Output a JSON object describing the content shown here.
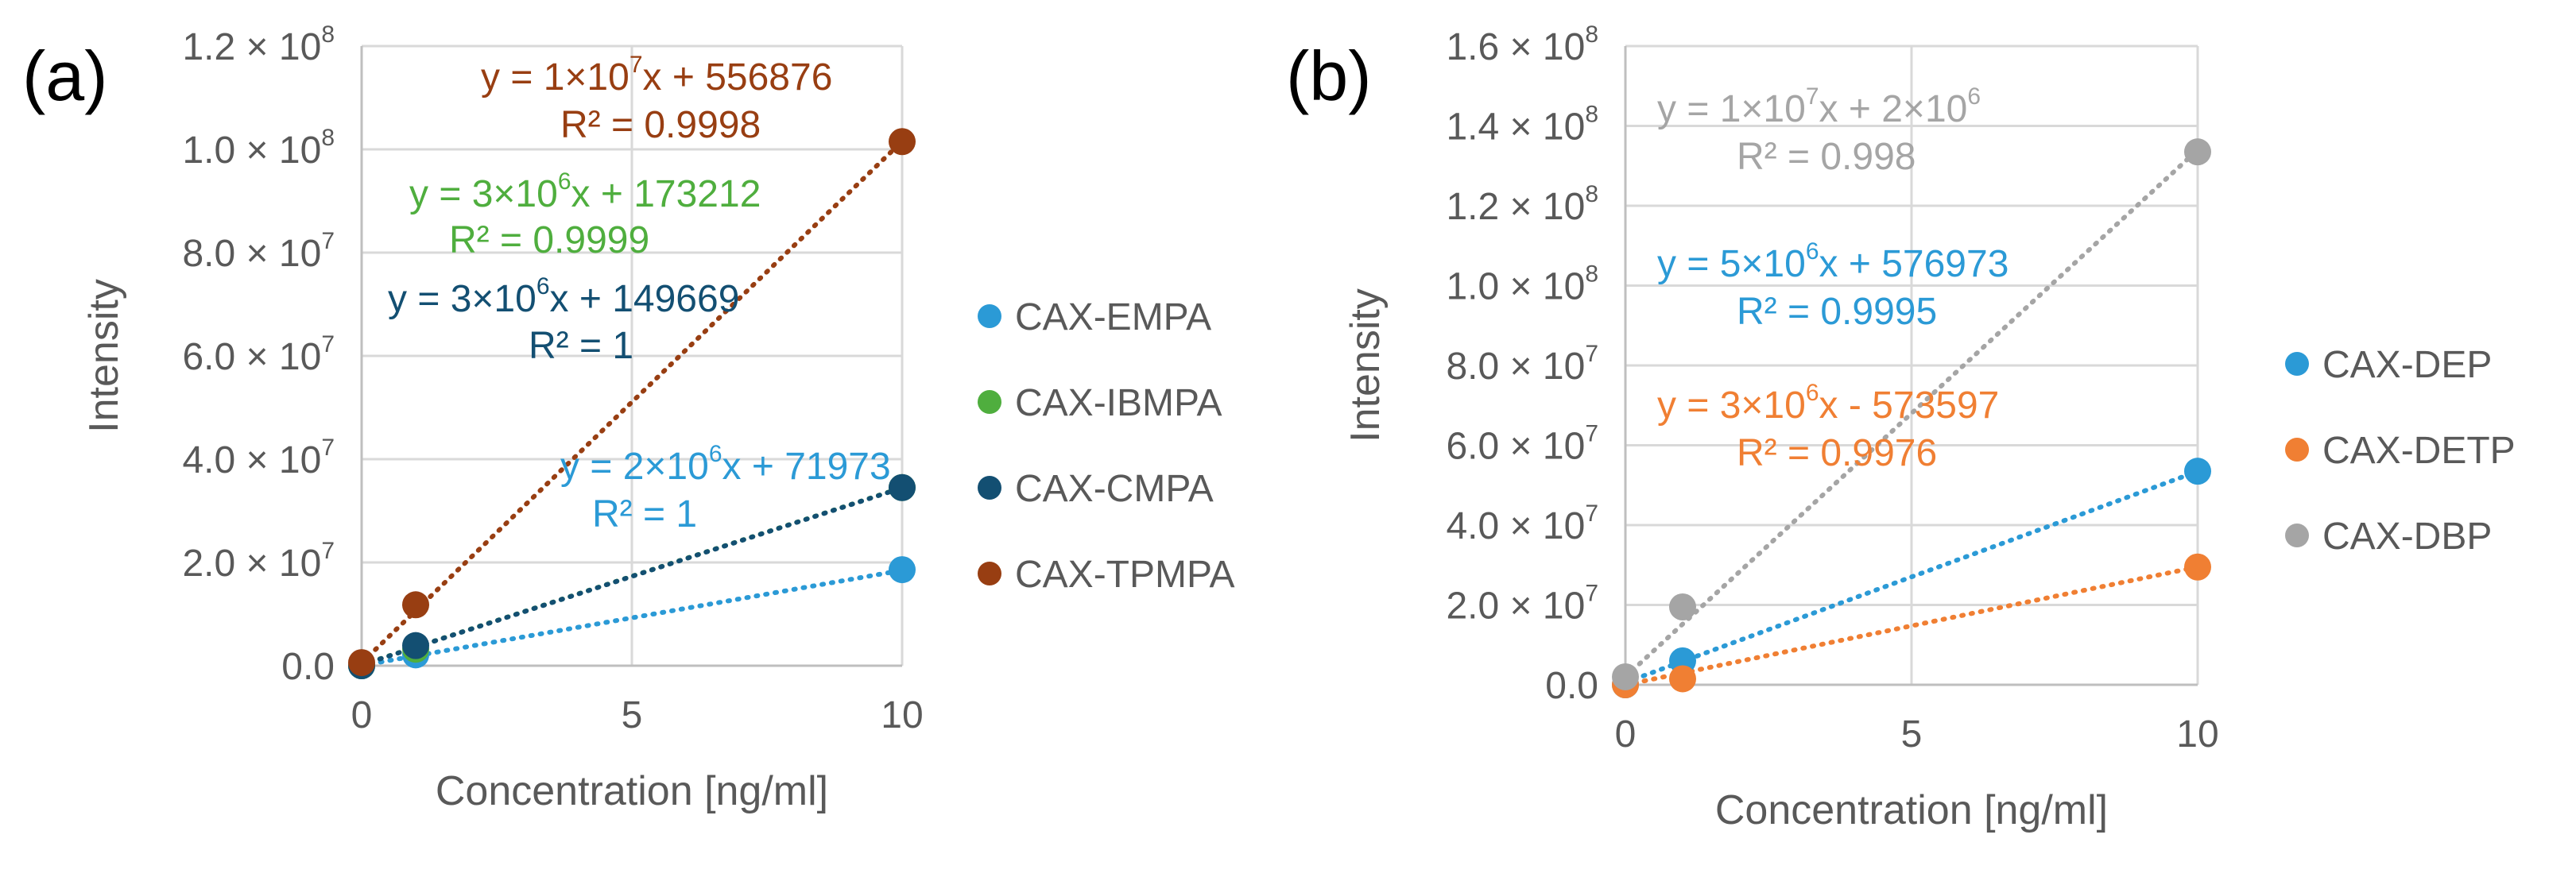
{
  "chart_data": [
    {
      "panel_label": "(a)",
      "type": "scatter",
      "xlabel": "Concentration [ng/ml]",
      "ylabel": "Intensity",
      "xlim": [
        0,
        10
      ],
      "ylim": [
        0,
        120000000
      ],
      "x_ticks": [
        {
          "value": 0,
          "label": "0"
        },
        {
          "value": 5,
          "label": "5"
        },
        {
          "value": 10,
          "label": "10"
        }
      ],
      "y_ticks": [
        {
          "value": 0,
          "label": "0.0",
          "exp": ""
        },
        {
          "value": 20000000,
          "label": "2.0 × 10",
          "exp": "7"
        },
        {
          "value": 40000000,
          "label": "4.0 × 10",
          "exp": "7"
        },
        {
          "value": 60000000,
          "label": "6.0 × 10",
          "exp": "7"
        },
        {
          "value": 80000000,
          "label": "8.0 × 10",
          "exp": "7"
        },
        {
          "value": 100000000,
          "label": "1.0 × 10",
          "exp": "8"
        },
        {
          "value": 120000000,
          "label": "1.2 × 10",
          "exp": "8"
        }
      ],
      "grid": true,
      "legend_position": "right",
      "series": [
        {
          "name": "CAX-EMPA",
          "color": "#2b9ad6",
          "points": [
            {
              "x": 0,
              "y": 0
            },
            {
              "x": 1,
              "y": 2100000
            },
            {
              "x": 10,
              "y": 18600000
            }
          ],
          "fit": {
            "slope": 1840000,
            "intercept": 71973
          },
          "equation": [
            "y = 2×10",
            "6",
            "x + 71973"
          ],
          "r2": "R² = 1"
        },
        {
          "name": "CAX-IBMPA",
          "color": "#4fae3e",
          "points": [
            {
              "x": 0,
              "y": 0
            },
            {
              "x": 1,
              "y": 3200000
            },
            {
              "x": 10,
              "y": 34500000
            }
          ],
          "fit": {
            "slope": 3430000,
            "intercept": 173212
          },
          "equation": [
            "y = 3×10",
            "6",
            "x + 173212"
          ],
          "r2": "R² = 0.9999"
        },
        {
          "name": "CAX-CMPA",
          "color": "#134f72",
          "points": [
            {
              "x": 0,
              "y": 0
            },
            {
              "x": 1,
              "y": 3900000
            },
            {
              "x": 10,
              "y": 34500000
            }
          ],
          "fit": {
            "slope": 3430000,
            "intercept": 149669
          },
          "equation": [
            "y = 3×10",
            "6",
            "x + 149669"
          ],
          "r2": "R² = 1"
        },
        {
          "name": "CAX-TPMPA",
          "color": "#983e12",
          "points": [
            {
              "x": 0,
              "y": 600000
            },
            {
              "x": 1,
              "y": 11800000
            },
            {
              "x": 10,
              "y": 101500000
            }
          ],
          "fit": {
            "slope": 10100000,
            "intercept": 556876
          },
          "equation": [
            "y = 1×10",
            "7",
            "x + 556876"
          ],
          "r2": "R² = 0.9998"
        }
      ]
    },
    {
      "panel_label": "(b)",
      "type": "scatter",
      "xlabel": "Concentration [ng/ml]",
      "ylabel": "Intensity",
      "xlim": [
        0,
        10
      ],
      "ylim": [
        0,
        160000000
      ],
      "x_ticks": [
        {
          "value": 0,
          "label": "0"
        },
        {
          "value": 5,
          "label": "5"
        },
        {
          "value": 10,
          "label": "10"
        }
      ],
      "y_ticks": [
        {
          "value": 0,
          "label": "0.0",
          "exp": ""
        },
        {
          "value": 20000000,
          "label": "2.0 × 10",
          "exp": "7"
        },
        {
          "value": 40000000,
          "label": "4.0 × 10",
          "exp": "7"
        },
        {
          "value": 60000000,
          "label": "6.0 × 10",
          "exp": "7"
        },
        {
          "value": 80000000,
          "label": "8.0 × 10",
          "exp": "7"
        },
        {
          "value": 100000000,
          "label": "1.0 × 10",
          "exp": "8"
        },
        {
          "value": 120000000,
          "label": "1.2 × 10",
          "exp": "8"
        },
        {
          "value": 140000000,
          "label": "1.4 × 10",
          "exp": "8"
        },
        {
          "value": 160000000,
          "label": "1.6 × 10",
          "exp": "8"
        }
      ],
      "grid": true,
      "legend_position": "right",
      "series": [
        {
          "name": "CAX-DEP",
          "color": "#2b9ad6",
          "points": [
            {
              "x": 0,
              "y": 0
            },
            {
              "x": 1,
              "y": 6000000
            },
            {
              "x": 10,
              "y": 53500000
            }
          ],
          "fit": {
            "slope": 5290000,
            "intercept": 576973
          },
          "equation": [
            "y = 5×10",
            "6",
            "x + 576973"
          ],
          "r2": "R² = 0.9995"
        },
        {
          "name": "CAX-DETP",
          "color": "#f07f33",
          "points": [
            {
              "x": 0,
              "y": 0
            },
            {
              "x": 1,
              "y": 1500000
            },
            {
              "x": 10,
              "y": 29500000
            }
          ],
          "fit": {
            "slope": 3010000,
            "intercept": -573597
          },
          "equation": [
            "y = 3×10",
            "6",
            "x - 573597"
          ],
          "r2": "R² = 0.9976"
        },
        {
          "name": "CAX-DBP",
          "color": "#a5a5a5",
          "points": [
            {
              "x": 0,
              "y": 2000000
            },
            {
              "x": 1,
              "y": 19500000
            },
            {
              "x": 10,
              "y": 133500000
            }
          ],
          "fit": {
            "slope": 13200000,
            "intercept": 2000000
          },
          "equation": [
            "y = 1×10",
            "7",
            "x + 2×10",
            "6"
          ],
          "r2": "R² = 0.998"
        }
      ]
    }
  ]
}
